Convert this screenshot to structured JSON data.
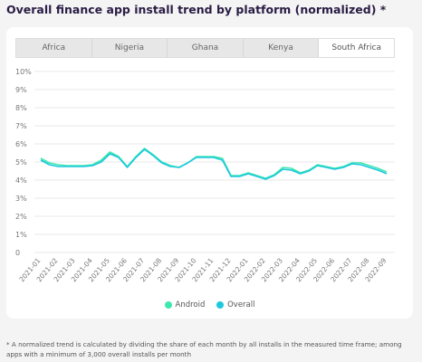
{
  "title": "Overall finance app install trend by platform (normalized) *",
  "tabs": [
    "Africa",
    "Nigeria",
    "Ghana",
    "Kenya",
    "South Africa"
  ],
  "active_tab": "South Africa",
  "footnote": "* A normalized trend is calculated by dividing the share of each month by all installs in the measured time frame; among apps with a minimum of 3,000 overall installs per month",
  "colors": {
    "android": "#3de8b0",
    "overall": "#1cc8dd"
  },
  "chart_data": {
    "type": "line",
    "title": "Overall finance app install trend by platform (normalized) *",
    "xlabel": "",
    "ylabel": "",
    "ylim": [
      0,
      10
    ],
    "yticks": [
      "0",
      "1%",
      "2%",
      "3%",
      "4%",
      "5%",
      "6%",
      "7%",
      "8%",
      "9%",
      "10%"
    ],
    "grid": true,
    "legend": "bottom",
    "categories": [
      "2021-01",
      "2021-02",
      "2021-03",
      "2021-04",
      "2021-05",
      "2021-06",
      "2021-07",
      "2021-08",
      "2021-09",
      "2021-10",
      "2021-11",
      "2021-12",
      "2022-01",
      "2022-02",
      "2022-03",
      "2022-04",
      "2022-05",
      "2022-06",
      "2022-07",
      "2022-08",
      "2022-09"
    ],
    "x": [
      "2021-01",
      "2021-01.5",
      "2021-02",
      "2021-02.5",
      "2021-03",
      "2021-03.5",
      "2021-04",
      "2021-04.5",
      "2021-05",
      "2021-05.5",
      "2021-06",
      "2021-06.5",
      "2021-07",
      "2021-07.5",
      "2021-08",
      "2021-08.5",
      "2021-09",
      "2021-09.5",
      "2021-10",
      "2021-10.5",
      "2021-11",
      "2021-11.5",
      "2021-12",
      "2021-12.5",
      "2022-01",
      "2022-01.5",
      "2022-02",
      "2022-02.5",
      "2022-03",
      "2022-03.5",
      "2022-04",
      "2022-04.5",
      "2022-05",
      "2022-05.5",
      "2022-06",
      "2022-06.5",
      "2022-07",
      "2022-07.5",
      "2022-08",
      "2022-08.5",
      "2022-09"
    ],
    "series": [
      {
        "name": "Android",
        "values": [
          5.2,
          4.95,
          4.85,
          4.8,
          4.8,
          4.8,
          4.85,
          5.1,
          5.55,
          5.3,
          4.75,
          5.3,
          5.75,
          5.4,
          5.0,
          4.8,
          4.7,
          4.95,
          5.3,
          5.3,
          5.3,
          5.2,
          4.25,
          4.25,
          4.4,
          4.25,
          4.1,
          4.3,
          4.7,
          4.65,
          4.4,
          4.55,
          4.85,
          4.75,
          4.65,
          4.75,
          4.95,
          4.95,
          4.8,
          4.65,
          4.45
        ]
      },
      {
        "name": "Overall",
        "values": [
          5.1,
          4.85,
          4.75,
          4.75,
          4.75,
          4.75,
          4.8,
          5.0,
          5.45,
          5.25,
          4.7,
          5.25,
          5.7,
          5.35,
          4.95,
          4.75,
          4.7,
          4.95,
          5.25,
          5.25,
          5.25,
          5.1,
          4.2,
          4.2,
          4.35,
          4.2,
          4.05,
          4.25,
          4.6,
          4.55,
          4.35,
          4.5,
          4.8,
          4.7,
          4.6,
          4.7,
          4.9,
          4.85,
          4.7,
          4.55,
          4.35
        ]
      }
    ]
  }
}
